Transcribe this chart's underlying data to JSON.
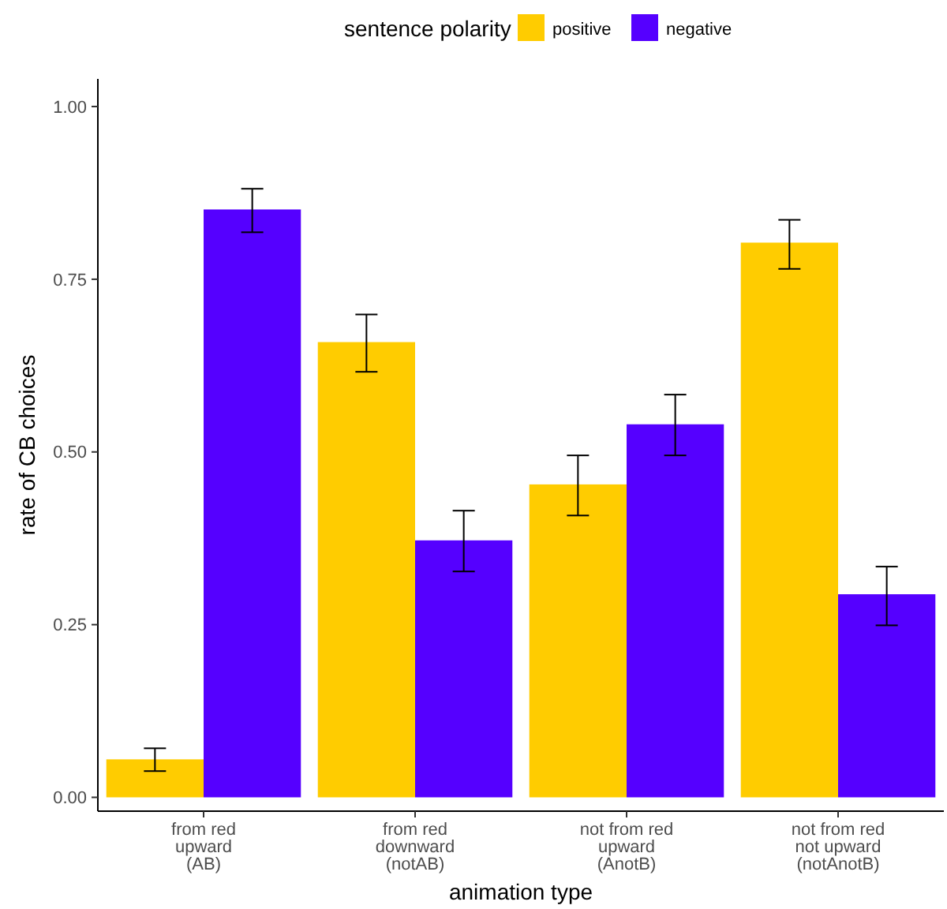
{
  "chart_data": {
    "type": "bar",
    "xlabel": "animation type",
    "ylabel": "rate of CB choices",
    "legend_title": "sentence polarity",
    "legend": "top",
    "categories": [
      "from red\nupward\n(AB)",
      "from red\ndownward\n(notAB)",
      "not from red\nupward\n(AnotB)",
      "not from red\nnot upward\n(notAnotB)"
    ],
    "ylim": [
      -0.02,
      1.04
    ],
    "yticks": [
      {
        "value": 0,
        "label": "0.00"
      },
      {
        "value": 0.25,
        "label": "0.25"
      },
      {
        "value": 0.5,
        "label": "0.50"
      },
      {
        "value": 0.75,
        "label": "0.75"
      },
      {
        "value": 1,
        "label": "1.00"
      }
    ],
    "grid": false,
    "series": [
      {
        "name": "positive",
        "color": "#ffcc00",
        "values": [
          0.055,
          0.659,
          0.453,
          0.803
        ],
        "errors": [
          [
            0.038,
            0.071
          ],
          [
            0.616,
            0.699
          ],
          [
            0.408,
            0.495
          ],
          [
            0.765,
            0.836
          ]
        ]
      },
      {
        "name": "negative",
        "color": "#5500ff",
        "values": [
          0.851,
          0.372,
          0.54,
          0.294
        ],
        "errors": [
          [
            0.818,
            0.881
          ],
          [
            0.327,
            0.415
          ],
          [
            0.495,
            0.583
          ],
          [
            0.249,
            0.334
          ]
        ]
      }
    ]
  }
}
